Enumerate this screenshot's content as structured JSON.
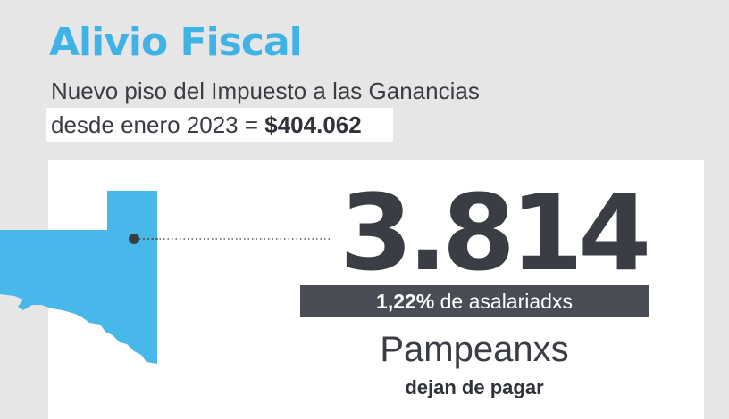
{
  "header": {
    "title": "Alivio Fiscal",
    "subtitle_line1": "Nuevo piso del Impuesto a las Ganancias",
    "subtitle_line2_prefix": "desde enero 2023 = ",
    "threshold_amount": "$404.062"
  },
  "stat": {
    "count": "3.814",
    "percent": "1,22%",
    "percent_suffix": " de asalariadxs",
    "group": "Pampeanxs",
    "action": "dejan de pagar"
  },
  "colors": {
    "accent_blue": "#3fb3e5",
    "map_blue": "#47b8e9",
    "dark_gray": "#4a4d55",
    "background": "#e6e6e6"
  },
  "icons": {
    "map": "la-pampa-province-map"
  }
}
